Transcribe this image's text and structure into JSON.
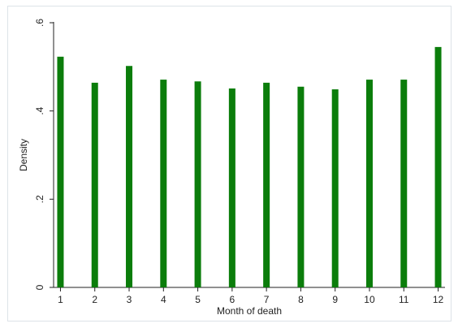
{
  "chart_data": {
    "type": "bar",
    "x_label": "Month of death",
    "y_label": "Density",
    "x": [
      1,
      2,
      3,
      4,
      5,
      6,
      7,
      8,
      9,
      10,
      11,
      12
    ],
    "values": [
      0.523,
      0.464,
      0.502,
      0.471,
      0.467,
      0.451,
      0.464,
      0.455,
      0.449,
      0.471,
      0.471,
      0.545
    ],
    "color": "#0b7d0b",
    "xlim": [
      0.8,
      12.2
    ],
    "xticks": [
      1,
      2,
      3,
      4,
      5,
      6,
      7,
      8,
      9,
      10,
      11,
      12
    ],
    "ylim": [
      0,
      0.6
    ],
    "yticks": [
      0,
      {
        "value": 0.2,
        "label": ".2"
      },
      {
        "value": 0.4,
        "label": ".4"
      },
      {
        "value": 0.6,
        "label": ".6"
      }
    ],
    "grid": false
  }
}
